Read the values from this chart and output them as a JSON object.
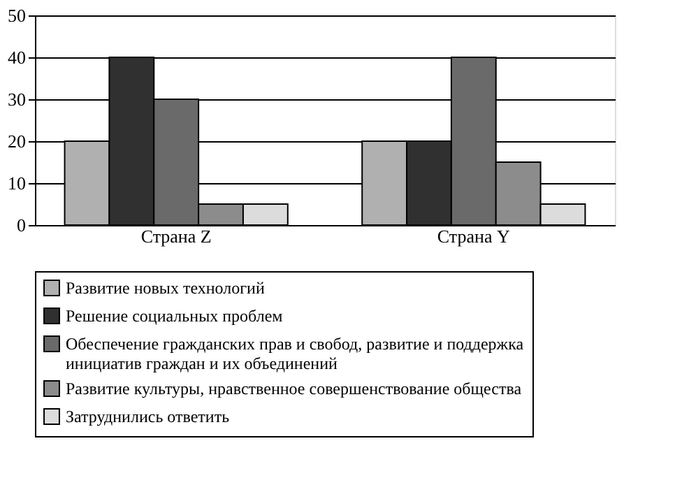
{
  "chart_data": {
    "type": "bar",
    "categories": [
      "Страна Z",
      "Страна Y"
    ],
    "series": [
      {
        "name": "Развитие новых технологий",
        "color": "#b0b0b0",
        "values": [
          20,
          20
        ]
      },
      {
        "name": "Решение социальных проблем",
        "color": "#303030",
        "values": [
          40,
          20
        ]
      },
      {
        "name": "Обеспечение гражданских прав и свобод, развитие и поддержка инициатив граждан и их объединений",
        "color": "#6a6a6a",
        "values": [
          30,
          40
        ]
      },
      {
        "name": "Развитие культуры, нравственное совершенствование общества",
        "color": "#8c8c8c",
        "values": [
          5,
          15
        ]
      },
      {
        "name": "Затруднились ответить",
        "color": "#dcdcdc",
        "values": [
          5,
          5
        ]
      }
    ],
    "ylim": [
      0,
      50
    ],
    "yticks": [
      0,
      10,
      20,
      30,
      40,
      50
    ],
    "grid": "y",
    "legend": "bottom"
  }
}
